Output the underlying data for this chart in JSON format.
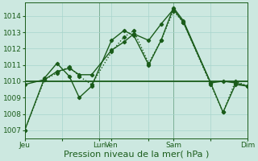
{
  "background_color": "#cce8e0",
  "grid_color": "#a8d4cc",
  "line_color": "#1a5c1a",
  "xlabel": "Pression niveau de la mer( hPa )",
  "ylim": [
    1006.5,
    1014.8
  ],
  "yticks": [
    1007,
    1008,
    1009,
    1010,
    1011,
    1012,
    1013,
    1014
  ],
  "xtick_labels": [
    "Jeu",
    "",
    "Lun",
    "Ven",
    "",
    "Sam",
    "",
    "Dim"
  ],
  "xtick_positions": [
    0,
    1.5,
    3.0,
    3.5,
    5.0,
    6.0,
    7.5,
    9.0
  ],
  "vlines": [
    3.0,
    6.0,
    9.0
  ],
  "series1_solid": {
    "x": [
      0.0,
      0.8,
      1.3,
      1.8,
      2.2,
      2.7,
      3.5,
      4.0,
      4.4,
      5.0,
      5.5,
      6.0,
      6.4,
      7.5,
      8.0,
      8.5,
      9.0
    ],
    "y": [
      1007.0,
      1010.2,
      1011.1,
      1010.3,
      1009.0,
      1009.7,
      1012.5,
      1013.1,
      1012.8,
      1011.0,
      1012.5,
      1014.5,
      1013.7,
      1009.9,
      1008.1,
      1009.8,
      1009.7
    ]
  },
  "series2_solid": {
    "x": [
      0.0,
      0.8,
      1.3,
      1.8,
      2.2,
      2.7,
      3.5,
      4.0,
      4.4,
      5.0,
      5.5,
      6.0,
      6.4,
      7.5,
      8.0,
      8.5,
      9.0
    ],
    "y": [
      1009.8,
      1010.1,
      1010.6,
      1010.8,
      1010.4,
      1010.4,
      1011.9,
      1012.4,
      1012.9,
      1012.5,
      1013.5,
      1014.4,
      1013.6,
      1009.9,
      1010.0,
      1009.9,
      1009.7
    ]
  },
  "series3_flat": {
    "x": [
      0.0,
      9.0
    ],
    "y": [
      1010.0,
      1010.0
    ]
  },
  "series4_dotted": {
    "x": [
      0.0,
      0.8,
      1.3,
      1.8,
      2.2,
      2.7,
      3.5,
      4.0,
      4.4,
      5.0,
      5.5,
      6.0,
      6.4,
      7.5,
      8.0,
      8.5,
      9.0
    ],
    "y": [
      1007.0,
      1010.1,
      1010.5,
      1010.9,
      1010.3,
      1009.8,
      1011.8,
      1012.7,
      1013.1,
      1011.1,
      1012.5,
      1014.3,
      1013.6,
      1009.8,
      1008.1,
      1010.0,
      1009.7
    ]
  },
  "xlabel_fontsize": 8,
  "tick_fontsize": 6.5
}
